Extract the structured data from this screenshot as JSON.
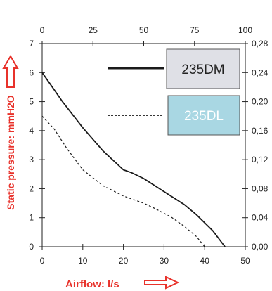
{
  "chart_data": {
    "type": "line",
    "title": "",
    "xlabel": "Airflow: l/s",
    "ylabel": "Static pressure: mmH2O",
    "xlim": [
      0,
      50
    ],
    "ylim": [
      0,
      7
    ],
    "x_ticks": [
      "0",
      "10",
      "20",
      "30",
      "40",
      "50"
    ],
    "y_ticks": [
      "0",
      "1",
      "2",
      "3",
      "4",
      "5",
      "6",
      "7"
    ],
    "top_axis": {
      "lim": [
        0,
        100
      ],
      "ticks": [
        "0",
        "25",
        "50",
        "75",
        "100"
      ]
    },
    "right_axis": {
      "lim": [
        0,
        0.28
      ],
      "ticks": [
        "0,00",
        "0,04",
        "0,08",
        "0,12",
        "0,16",
        "0,20",
        "0,24",
        "0,28"
      ]
    },
    "grid": false,
    "legend_placement": "top-right",
    "series": [
      {
        "name": "235DM",
        "style": "solid",
        "color": "#1a1a1a",
        "x": [
          0,
          2,
          5,
          10,
          15,
          20,
          22,
          25,
          30,
          35,
          38,
          42,
          45
        ],
        "y": [
          6.0,
          5.6,
          5.0,
          4.1,
          3.3,
          2.65,
          2.55,
          2.35,
          1.9,
          1.45,
          1.1,
          0.55,
          0.0
        ]
      },
      {
        "name": "235DL",
        "style": "dashed",
        "color": "#1a1a1a",
        "x": [
          0,
          3,
          6,
          10,
          15,
          20,
          25,
          28,
          32,
          35,
          38,
          40
        ],
        "y": [
          4.5,
          4.05,
          3.4,
          2.65,
          2.1,
          1.75,
          1.5,
          1.3,
          1.0,
          0.7,
          0.35,
          0.0
        ]
      }
    ]
  },
  "legend_boxes": [
    {
      "label": "235DM",
      "fill": "#dfe0e6",
      "text_color": "#222222"
    },
    {
      "label": "235DL",
      "fill": "#a9d7e3",
      "text_color": "#ffffff"
    }
  ],
  "colors": {
    "axis_title": "#e8322b",
    "axis": "#222222"
  }
}
